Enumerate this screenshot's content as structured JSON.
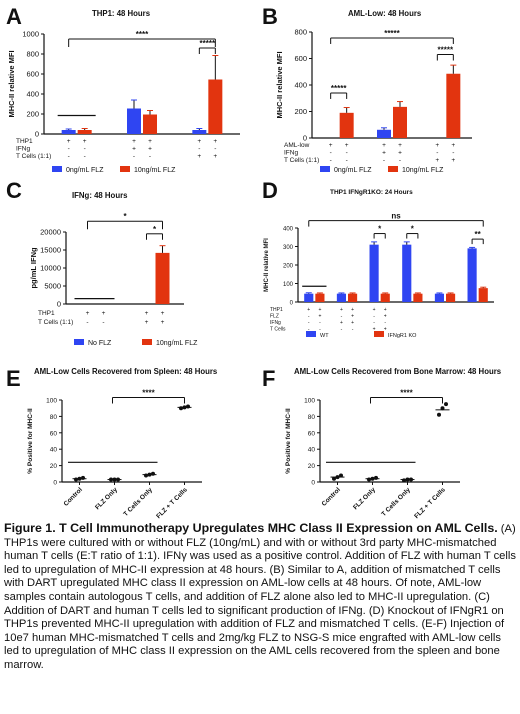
{
  "colors": {
    "blue": "#2f45f2",
    "red": "#e2340f",
    "axis": "#111111"
  },
  "caption": {
    "title": "Figure 1. T Cell Immunotherapy Upregulates MHC Class II Expression on AML Cells.",
    "body": "(A) THP1s were cultured with or without FLZ (10ng/mL) and with or without 3rd party MHC-mismatched human T cells (E:T ratio of 1:1). IFNγ was used as a positive control. Addition of FLZ with human T cells led to upregulation of MHC-II expression at 48 hours. (B) Similar to A, addition of mismatched T cells with DART upregulated MHC class II expression on AML-low cells at 48 hours. Of note, AML-low samples contain autologous T cells, and addition of FLZ alone also led to MHC-II upregulation. (C) Addition of DART and human T cells led to significant production of IFNg. (D) Knockout of IFNgR1 on THP1s prevented MHC-II upregulation with addition of FLZ and mismatched T cells. (E-F) Injection of 10e7 human MHC-mismatched T cells and 2mg/kg FLZ to NSG-S mice engrafted with AML-low cells led to upregulation of MHC class II expression on the AML cells recovered from the spleen and bone marrow."
  },
  "chart_data": [
    {
      "id": "A",
      "type": "bar",
      "letter": "A",
      "title": "THP1: 48 Hours",
      "ylabel": "MHC-II relative MFI",
      "ylim": [
        0,
        1000
      ],
      "yticks": [
        0,
        200,
        400,
        600,
        800,
        1000
      ],
      "groups": 3,
      "row_labels": [
        "THP1",
        "IFNg",
        "T Cells (1:1)"
      ],
      "row_marks": [
        [
          "+",
          "+",
          "+",
          "+",
          "+",
          "+"
        ],
        [
          "-",
          "-",
          "+",
          "+",
          "-",
          "-"
        ],
        [
          "-",
          "-",
          "-",
          "-",
          "+",
          "+"
        ]
      ],
      "series": [
        {
          "name": "0ng/mL FLZ",
          "color": "blue",
          "values": [
            40,
            255,
            40
          ],
          "errors": [
            10,
            85,
            15
          ]
        },
        {
          "name": "10ng/mL FLZ",
          "color": "red",
          "values": [
            40,
            195,
            545
          ],
          "errors": [
            15,
            40,
            240
          ]
        }
      ],
      "sig": [
        "****",
        "*****"
      ]
    },
    {
      "id": "B",
      "type": "bar",
      "letter": "B",
      "title": "AML-Low: 48 Hours",
      "ylabel": "MHC-II relative MFI",
      "ylim": [
        0,
        800
      ],
      "yticks": [
        0,
        200,
        400,
        600,
        800
      ],
      "groups": 3,
      "row_labels": [
        "AML-low",
        "IFNg",
        "T Cells (1:1)"
      ],
      "row_marks": [
        [
          "+",
          "+",
          "+",
          "+",
          "+",
          "+"
        ],
        [
          "-",
          "-",
          "+",
          "+",
          "-",
          "-"
        ],
        [
          "-",
          "-",
          "-",
          "-",
          "+",
          "+"
        ]
      ],
      "series": [
        {
          "name": "0ng/mL FLZ",
          "color": "blue",
          "values": [
            0,
            62,
            0
          ],
          "errors": [
            0,
            15,
            0
          ]
        },
        {
          "name": "10ng/mL FLZ",
          "color": "red",
          "values": [
            190,
            235,
            485
          ],
          "errors": [
            40,
            40,
            65
          ]
        }
      ],
      "sig": [
        "*****",
        "*****",
        "*****"
      ]
    },
    {
      "id": "C",
      "type": "bar",
      "letter": "C",
      "title": "IFNg: 48 Hours",
      "ylabel": "pg/mL IFNg",
      "ylim": [
        0,
        20000
      ],
      "yticks": [
        0,
        5000,
        10000,
        15000,
        20000
      ],
      "groups": 2,
      "row_labels": [
        "THP1",
        "T Cells (1:1)"
      ],
      "row_marks": [
        [
          "+",
          "+",
          "+",
          "+"
        ],
        [
          "-",
          "-",
          "+",
          "+"
        ]
      ],
      "series": [
        {
          "name": "No FLZ",
          "color": "blue",
          "values": [
            0,
            0
          ],
          "errors": [
            0,
            0
          ]
        },
        {
          "name": "10ng/mL FLZ",
          "color": "red",
          "values": [
            0,
            14200
          ],
          "errors": [
            0,
            2000
          ]
        }
      ],
      "sig": [
        "*",
        "*"
      ]
    },
    {
      "id": "D",
      "type": "bar",
      "letter": "D",
      "title": "THP1 IFNgR1KO: 24 Hours",
      "ylabel": "MHC-II relative MFI",
      "ylim": [
        0,
        400
      ],
      "yticks": [
        0,
        100,
        200,
        300,
        400
      ],
      "groups": 6,
      "row_labels": [
        "THP1",
        "FLZ",
        "IFNg",
        "T Cells"
      ],
      "row_marks": [
        [
          "+",
          "+",
          "+",
          "+",
          "+",
          "+"
        ],
        [
          "-",
          "+",
          "-",
          "+",
          "-",
          "+"
        ],
        [
          "-",
          "-",
          "+",
          "+",
          "-",
          "-"
        ],
        [
          "-",
          "-",
          "-",
          "-",
          "+",
          "+"
        ]
      ],
      "series": [
        {
          "name": "WT",
          "color": "blue",
          "values": [
            45,
            45,
            310,
            310,
            45,
            290
          ],
          "errors": [
            5,
            4,
            15,
            15,
            4,
            5
          ]
        },
        {
          "name": "IFNgR1 KO",
          "color": "red",
          "values": [
            45,
            45,
            45,
            45,
            45,
            75
          ],
          "errors": [
            4,
            4,
            4,
            4,
            4,
            5
          ]
        }
      ],
      "sig": [
        "ns",
        "*",
        "*",
        "**"
      ]
    },
    {
      "id": "E",
      "type": "scatter",
      "letter": "E",
      "title": "AML-Low Cells Recovered from Spleen: 48 Hours",
      "ylabel": "% Positive for MHC-II",
      "ylim": [
        0,
        100
      ],
      "yticks": [
        0,
        20,
        40,
        60,
        80,
        100
      ],
      "categories": [
        "Control",
        "FLZ Only",
        "T Cells Only",
        "FLZ + T Cells"
      ],
      "points": [
        [
          3,
          4,
          5
        ],
        [
          3,
          3,
          3
        ],
        [
          8,
          9,
          10
        ],
        [
          90,
          91,
          92
        ]
      ],
      "means": [
        4,
        3,
        9,
        91
      ],
      "sig": [
        "****"
      ]
    },
    {
      "id": "F",
      "type": "scatter",
      "letter": "F",
      "title": "AML-Low Cells Recovered from Bone Marrow: 48 Hours",
      "ylabel": "% Positive for MHC-II",
      "ylim": [
        0,
        100
      ],
      "yticks": [
        0,
        20,
        40,
        60,
        80,
        100
      ],
      "categories": [
        "Control",
        "FLZ Only",
        "T Cells Only",
        "FLZ + T Cells"
      ],
      "points": [
        [
          4,
          6,
          8
        ],
        [
          3,
          4,
          5
        ],
        [
          2,
          3,
          3
        ],
        [
          82,
          90,
          95
        ]
      ],
      "means": [
        6,
        4,
        3,
        88
      ],
      "sig": [
        "****"
      ]
    }
  ]
}
